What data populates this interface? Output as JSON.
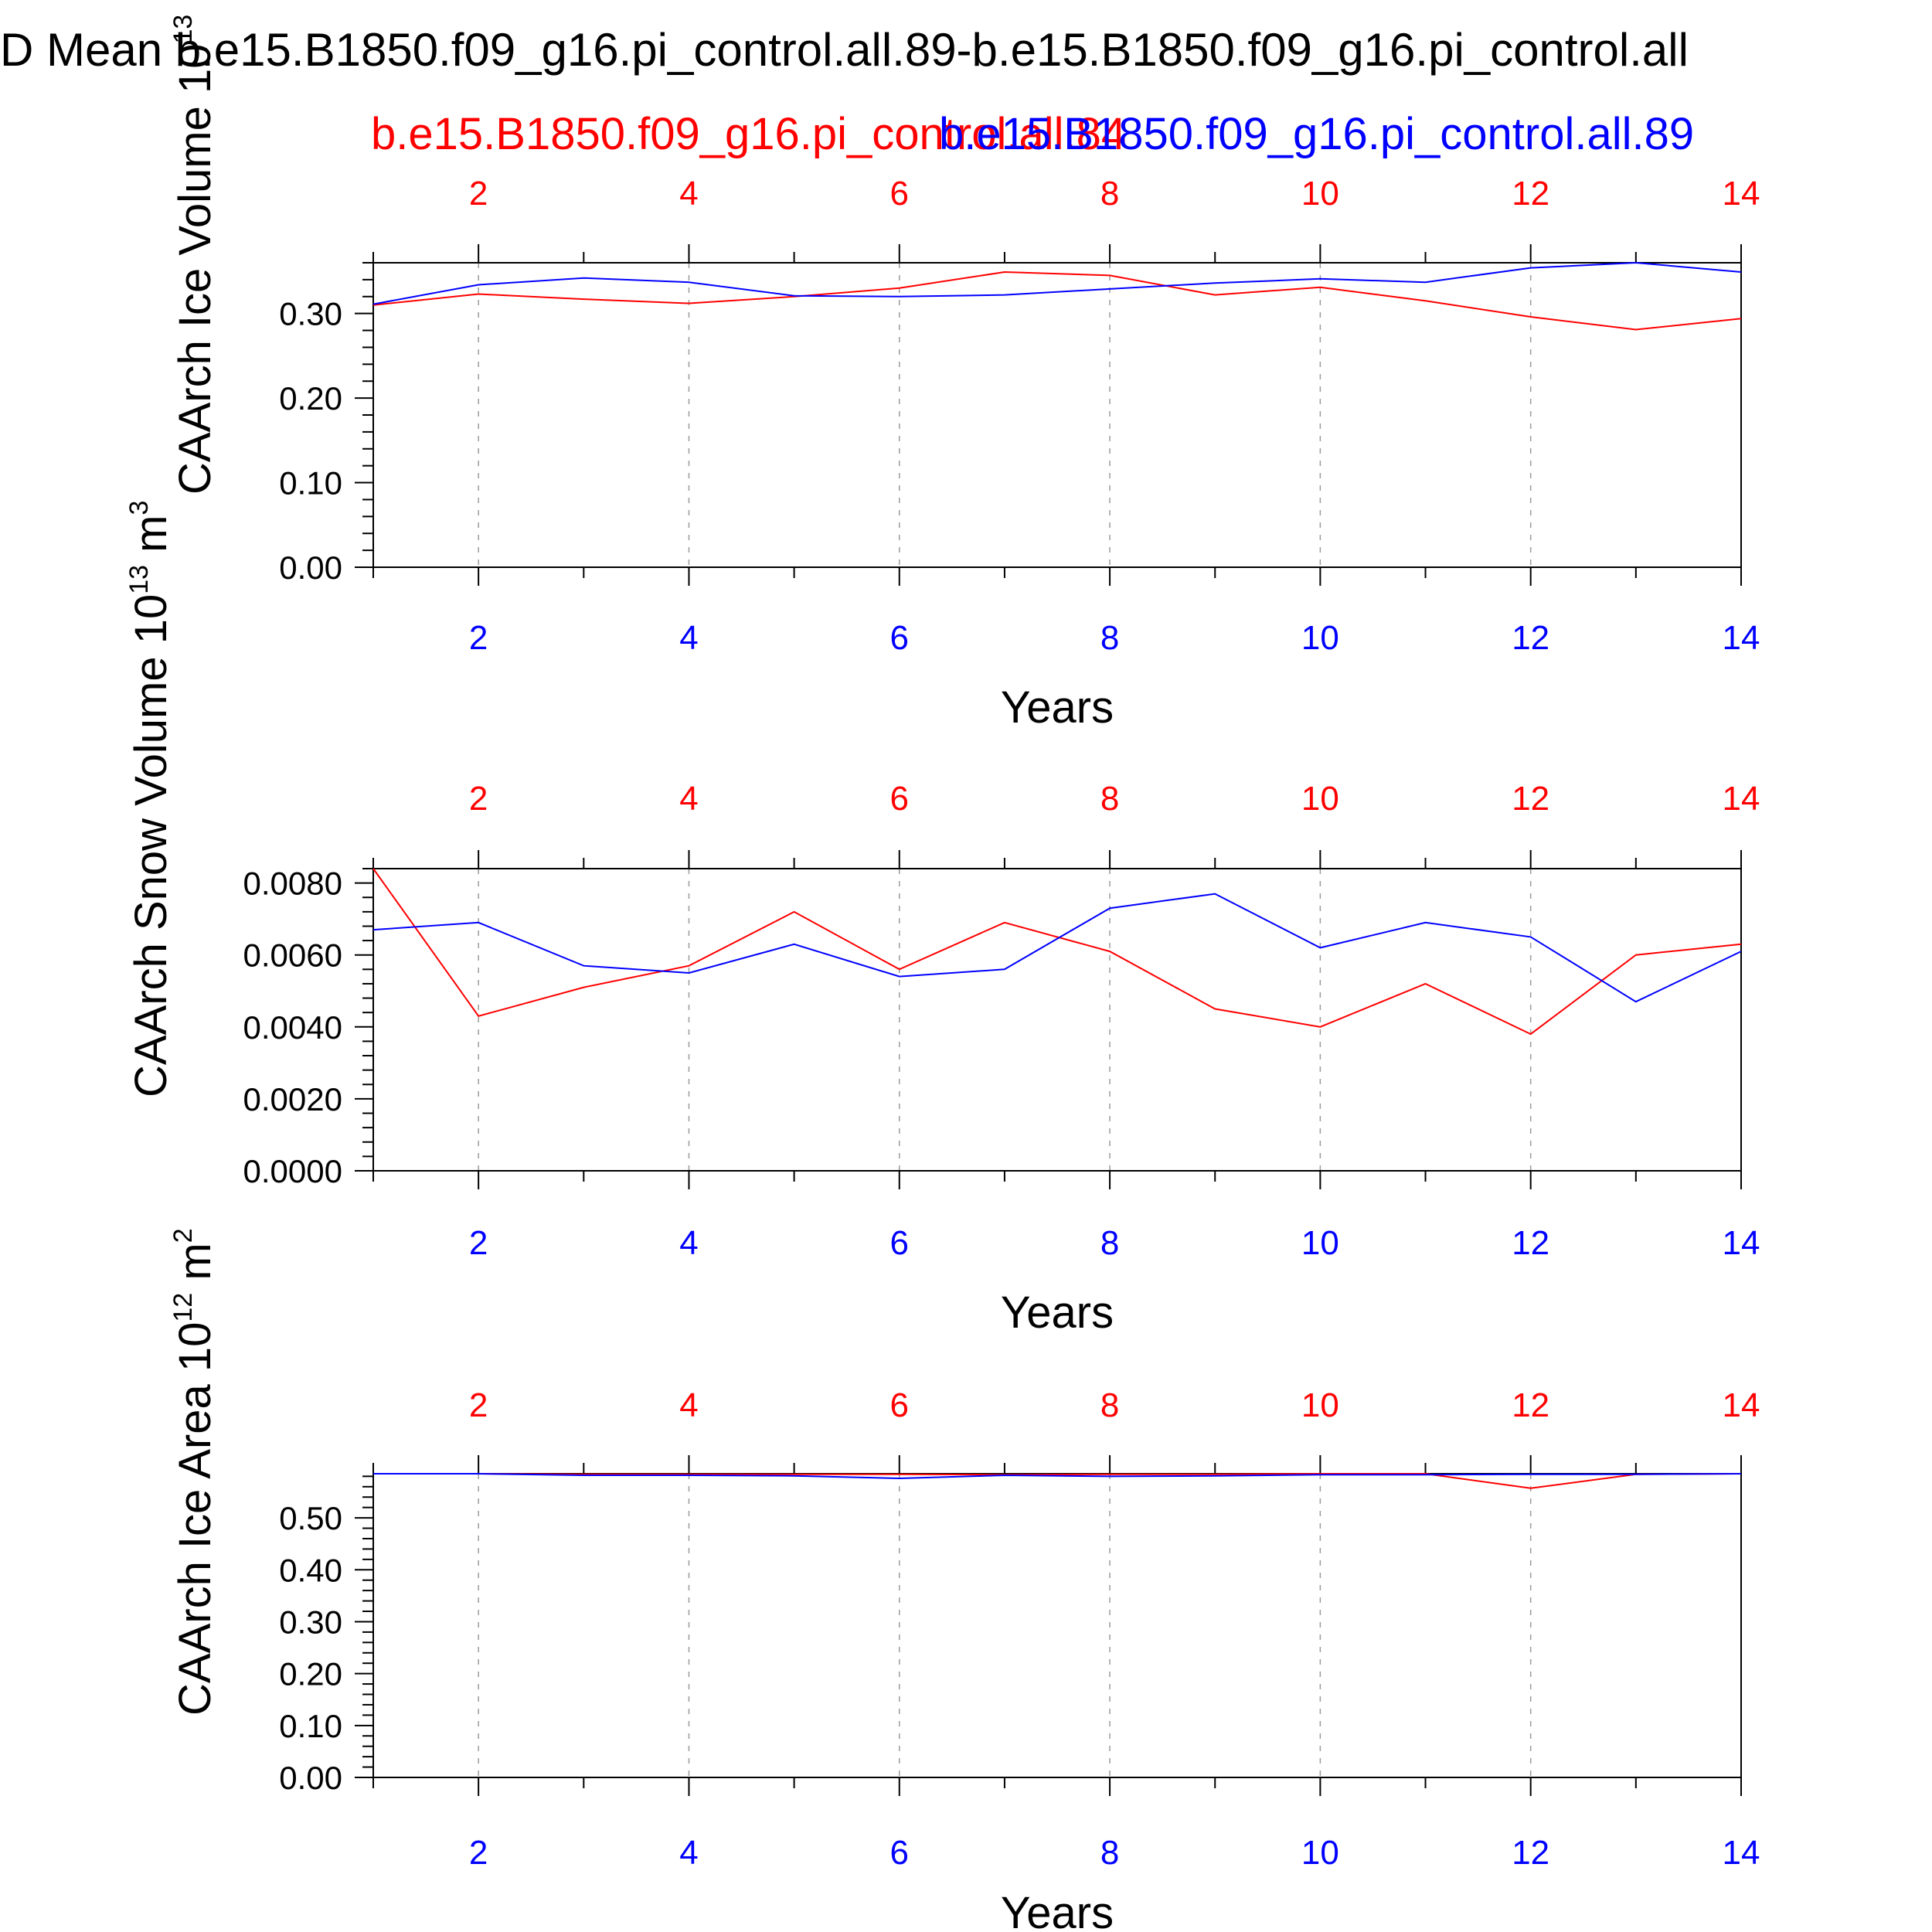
{
  "figure": {
    "title": "D Mean b.e15.B1850.f09_g16.pi_control.all.89-b.e15.B1850.f09_g16.pi_control.all",
    "top_legend": [
      {
        "label": "b.e15.B1850.f09_g16.pi_control.all.84",
        "color": "#ff0000"
      },
      {
        "label": "b.e15.B1850.f09_g16.pi_control.all.89",
        "color": "#0000ff"
      }
    ],
    "colors": {
      "series_a": "#ff0000",
      "series_b": "#0000ff",
      "axis": "#000000",
      "grid": "#9a9a9a"
    }
  },
  "chart_data": [
    {
      "type": "line",
      "ylabel": "CAArch Ice Volume",
      "yunit": "10",
      "yunit_exp": "13",
      "yunit_m": "m",
      "yunit_m_exp": "3",
      "xlabel": "Years",
      "xlim": [
        1,
        14
      ],
      "ylim": [
        0,
        0.36
      ],
      "yticks": [
        0.0,
        0.1,
        0.2,
        0.3
      ],
      "ytick_labels": [
        "0.00",
        "0.10",
        "0.20",
        "0.30"
      ],
      "xticks": [
        2,
        4,
        6,
        8,
        10,
        12,
        14
      ],
      "xtick_labels": [
        "2",
        "4",
        "6",
        "8",
        "10",
        "12",
        "14"
      ],
      "grid": "vertical dashed at major x ticks",
      "x": [
        1,
        2,
        3,
        4,
        5,
        6,
        7,
        8,
        9,
        10,
        11,
        12,
        13,
        14
      ],
      "series": [
        {
          "name": "b.e15.B1850.f09_g16.pi_control.all.84",
          "color": "#ff0000",
          "values": [
            0.31,
            0.323,
            0.317,
            0.312,
            0.32,
            0.33,
            0.349,
            0.345,
            0.322,
            0.331,
            0.315,
            0.296,
            0.281,
            0.294
          ]
        },
        {
          "name": "b.e15.B1850.f09_g16.pi_control.all.89",
          "color": "#0000ff",
          "values": [
            0.311,
            0.334,
            0.342,
            0.337,
            0.321,
            0.32,
            0.322,
            0.329,
            0.336,
            0.341,
            0.337,
            0.354,
            0.361,
            0.349
          ]
        }
      ]
    },
    {
      "type": "line",
      "ylabel": "CAArch Snow Volume",
      "yunit": "10",
      "yunit_exp": "13",
      "yunit_m": "m",
      "yunit_m_exp": "3",
      "xlabel": "Years",
      "xlim": [
        1,
        14
      ],
      "ylim": [
        0,
        0.0084
      ],
      "yticks": [
        0.0,
        0.002,
        0.004,
        0.006,
        0.008
      ],
      "ytick_labels": [
        "0.0000",
        "0.0020",
        "0.0040",
        "0.0060",
        "0.0080"
      ],
      "xticks": [
        2,
        4,
        6,
        8,
        10,
        12,
        14
      ],
      "xtick_labels": [
        "2",
        "4",
        "6",
        "8",
        "10",
        "12",
        "14"
      ],
      "grid": "vertical dashed at major x ticks",
      "x": [
        1,
        2,
        3,
        4,
        5,
        6,
        7,
        8,
        9,
        10,
        11,
        12,
        13,
        14
      ],
      "series": [
        {
          "name": "b.e15.B1850.f09_g16.pi_control.all.84",
          "color": "#ff0000",
          "values": [
            0.0084,
            0.0043,
            0.0051,
            0.0057,
            0.0072,
            0.0056,
            0.0069,
            0.0061,
            0.0045,
            0.004,
            0.0052,
            0.0038,
            0.006,
            0.0063
          ]
        },
        {
          "name": "b.e15.B1850.f09_g16.pi_control.all.89",
          "color": "#0000ff",
          "values": [
            0.0067,
            0.0069,
            0.0057,
            0.0055,
            0.0063,
            0.0054,
            0.0056,
            0.0073,
            0.0077,
            0.0062,
            0.0069,
            0.0065,
            0.0047,
            0.0061
          ]
        }
      ]
    },
    {
      "type": "line",
      "ylabel": "CAArch Ice Area",
      "yunit": "10",
      "yunit_exp": "12",
      "yunit_m": "m",
      "yunit_m_exp": "2",
      "xlabel": "Years",
      "xlim": [
        1,
        14
      ],
      "ylim": [
        0,
        0.585
      ],
      "yticks": [
        0.0,
        0.1,
        0.2,
        0.3,
        0.4,
        0.5
      ],
      "ytick_labels": [
        "0.00",
        "0.10",
        "0.20",
        "0.30",
        "0.40",
        "0.50"
      ],
      "xticks": [
        2,
        4,
        6,
        8,
        10,
        12,
        14
      ],
      "xtick_labels": [
        "2",
        "4",
        "6",
        "8",
        "10",
        "12",
        "14"
      ],
      "grid": "vertical dashed at major x ticks",
      "x": [
        1,
        2,
        3,
        4,
        5,
        6,
        7,
        8,
        9,
        10,
        11,
        12,
        13,
        14
      ],
      "series": [
        {
          "name": "b.e15.B1850.f09_g16.pi_control.all.84",
          "color": "#ff0000",
          "values": [
            0.585,
            0.585,
            0.584,
            0.584,
            0.584,
            0.584,
            0.583,
            0.584,
            0.584,
            0.585,
            0.585,
            0.557,
            0.584,
            0.585
          ]
        },
        {
          "name": "b.e15.B1850.f09_g16.pi_control.all.89",
          "color": "#0000ff",
          "values": [
            0.585,
            0.585,
            0.582,
            0.582,
            0.581,
            0.576,
            0.582,
            0.58,
            0.581,
            0.583,
            0.583,
            0.584,
            0.584,
            0.585
          ]
        }
      ]
    }
  ]
}
